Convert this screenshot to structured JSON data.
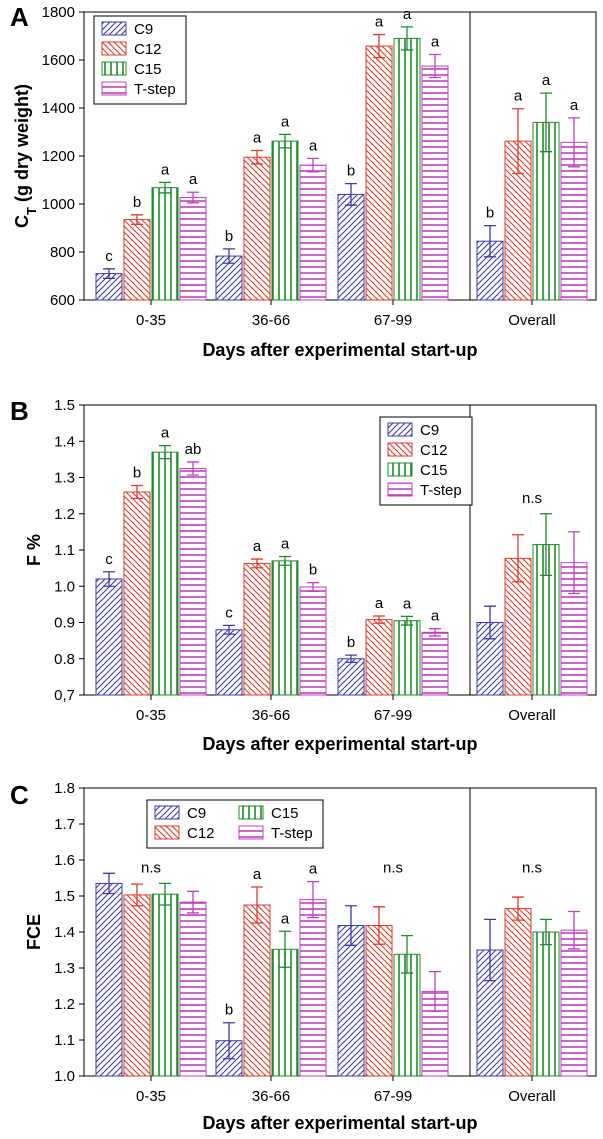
{
  "series_styles": [
    {
      "name": "C9",
      "color": "#3b3bb0",
      "pattern": "diag-right"
    },
    {
      "name": "C12",
      "color": "#e03a2e",
      "pattern": "diag-left"
    },
    {
      "name": "C15",
      "color": "#1f8a2a",
      "pattern": "vertical"
    },
    {
      "name": "T-step",
      "color": "#c23fc0",
      "pattern": "horizontal"
    }
  ],
  "chart_data": [
    {
      "type": "bar",
      "panel_label": "A",
      "ylabel_main": "C",
      "ylabel_sub": "T",
      "ylabel_rest": " (g dry weight)",
      "xlabel": "Days after experimental start-up",
      "categories": [
        "0-35",
        "36-66",
        "67-99",
        "Overall"
      ],
      "ylim": [
        600,
        1800
      ],
      "yticks": [
        "600",
        "800",
        "1000",
        "1200",
        "1400",
        "1600",
        "1800"
      ],
      "legend_position": "top-left",
      "legend_columns": 1,
      "series": [
        {
          "name": "C9",
          "values": [
            710,
            783,
            1040,
            845
          ],
          "errors": [
            20,
            30,
            45,
            65
          ]
        },
        {
          "name": "C12",
          "values": [
            935,
            1195,
            1658,
            1262
          ],
          "errors": [
            20,
            28,
            48,
            135
          ]
        },
        {
          "name": "C15",
          "values": [
            1068,
            1262,
            1690,
            1340
          ],
          "errors": [
            22,
            28,
            48,
            122
          ]
        },
        {
          "name": "T-step",
          "values": [
            1027,
            1162,
            1575,
            1257
          ],
          "errors": [
            22,
            28,
            48,
            102
          ]
        }
      ],
      "annotations": [
        {
          "category": 0,
          "series": 0,
          "text": "c"
        },
        {
          "category": 0,
          "series": 1,
          "text": "b"
        },
        {
          "category": 0,
          "series": 2,
          "text": "a"
        },
        {
          "category": 0,
          "series": 3,
          "text": "a"
        },
        {
          "category": 1,
          "series": 0,
          "text": "b"
        },
        {
          "category": 1,
          "series": 1,
          "text": "a"
        },
        {
          "category": 1,
          "series": 2,
          "text": "a"
        },
        {
          "category": 1,
          "series": 3,
          "text": "a"
        },
        {
          "category": 2,
          "series": 0,
          "text": "b"
        },
        {
          "category": 2,
          "series": 1,
          "text": "a"
        },
        {
          "category": 2,
          "series": 2,
          "text": "a"
        },
        {
          "category": 2,
          "series": 3,
          "text": "a"
        },
        {
          "category": 3,
          "series": 0,
          "text": "b"
        },
        {
          "category": 3,
          "series": 1,
          "text": "a"
        },
        {
          "category": 3,
          "series": 2,
          "text": "a"
        },
        {
          "category": 3,
          "series": 3,
          "text": "a"
        }
      ]
    },
    {
      "type": "bar",
      "panel_label": "B",
      "ylabel_main": "F %",
      "ylabel_sub": "",
      "ylabel_rest": "",
      "xlabel": "Days after experimental start-up",
      "categories": [
        "0-35",
        "36-66",
        "67-99",
        "Overall"
      ],
      "ylim": [
        0.7,
        1.5
      ],
      "yticks": [
        "0,7",
        "0.8",
        "0.9",
        "1.0",
        "1.1",
        "1.2",
        "1.3",
        "1.4",
        "1.5"
      ],
      "legend_position": "top-right",
      "legend_columns": 1,
      "series": [
        {
          "name": "C9",
          "values": [
            1.02,
            0.88,
            0.8,
            0.9
          ],
          "errors": [
            0.02,
            0.012,
            0.01,
            0.045
          ]
        },
        {
          "name": "C12",
          "values": [
            1.26,
            1.063,
            0.908,
            1.077
          ],
          "errors": [
            0.018,
            0.012,
            0.01,
            0.065
          ]
        },
        {
          "name": "C15",
          "values": [
            1.37,
            1.07,
            0.905,
            1.115
          ],
          "errors": [
            0.018,
            0.012,
            0.012,
            0.085
          ]
        },
        {
          "name": "T-step",
          "values": [
            1.325,
            0.998,
            0.873,
            1.065
          ],
          "errors": [
            0.018,
            0.012,
            0.01,
            0.085
          ]
        }
      ],
      "annotations": [
        {
          "category": 0,
          "series": 0,
          "text": "c"
        },
        {
          "category": 0,
          "series": 1,
          "text": "b"
        },
        {
          "category": 0,
          "series": 2,
          "text": "a"
        },
        {
          "category": 0,
          "series": 3,
          "text": "ab"
        },
        {
          "category": 1,
          "series": 0,
          "text": "c"
        },
        {
          "category": 1,
          "series": 1,
          "text": "a"
        },
        {
          "category": 1,
          "series": 2,
          "text": "a"
        },
        {
          "category": 1,
          "series": 3,
          "text": "b"
        },
        {
          "category": 2,
          "series": 0,
          "text": "b"
        },
        {
          "category": 2,
          "series": 1,
          "text": "a"
        },
        {
          "category": 2,
          "series": 2,
          "text": "a"
        },
        {
          "category": 2,
          "series": 3,
          "text": "a"
        },
        {
          "category": 3,
          "text": "n.s",
          "y": 1.23
        }
      ]
    },
    {
      "type": "bar",
      "panel_label": "C",
      "ylabel_main": "FCE",
      "ylabel_sub": "",
      "ylabel_rest": "",
      "xlabel": "Days after experimental start-up",
      "categories": [
        "0-35",
        "36-66",
        "67-99",
        "Overall"
      ],
      "ylim": [
        1.0,
        1.8
      ],
      "yticks": [
        "1.0",
        "1.1",
        "1.2",
        "1.3",
        "1.4",
        "1.5",
        "1.6",
        "1.7",
        "1.8"
      ],
      "legend_position": "top-left",
      "legend_columns": 2,
      "series": [
        {
          "name": "C9",
          "values": [
            1.535,
            1.098,
            1.418,
            1.35
          ],
          "errors": [
            0.028,
            0.05,
            0.055,
            0.085
          ]
        },
        {
          "name": "C12",
          "values": [
            1.503,
            1.475,
            1.418,
            1.465
          ],
          "errors": [
            0.03,
            0.05,
            0.052,
            0.032
          ]
        },
        {
          "name": "C15",
          "values": [
            1.505,
            1.352,
            1.338,
            1.4
          ],
          "errors": [
            0.03,
            0.05,
            0.052,
            0.035
          ]
        },
        {
          "name": "T-step",
          "values": [
            1.483,
            1.49,
            1.235,
            1.405
          ],
          "errors": [
            0.03,
            0.05,
            0.055,
            0.052
          ]
        }
      ],
      "annotations": [
        {
          "category": 0,
          "text": "n.s",
          "y": 1.565
        },
        {
          "category": 1,
          "series": 0,
          "text": "b"
        },
        {
          "category": 1,
          "series": 1,
          "text": "a"
        },
        {
          "category": 1,
          "series": 2,
          "text": "a"
        },
        {
          "category": 1,
          "series": 3,
          "text": "a"
        },
        {
          "category": 2,
          "text": "n.s",
          "y": 1.565
        },
        {
          "category": 3,
          "text": "n.s",
          "y": 1.565
        }
      ]
    }
  ]
}
